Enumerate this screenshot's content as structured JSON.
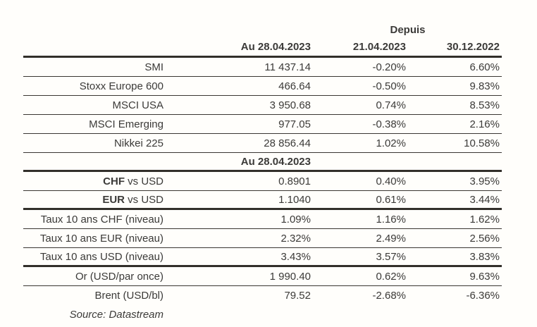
{
  "table": {
    "depuis_label": "Depuis",
    "columns": [
      "Au 28.04.2023",
      "21.04.2023",
      "30.12.2022"
    ],
    "section2_header": "Au 28.04.2023",
    "rows": [
      {
        "label": "SMI",
        "value": "11 437.14",
        "since_prev": "-0.20%",
        "since_ytd": "6.60%"
      },
      {
        "label": "Stoxx Europe 600",
        "value": "466.64",
        "since_prev": "-0.50%",
        "since_ytd": "9.83%"
      },
      {
        "label": "MSCI USA",
        "value": "3 950.68",
        "since_prev": "0.74%",
        "since_ytd": "8.53%"
      },
      {
        "label": "MSCI Emerging",
        "value": "977.05",
        "since_prev": "-0.38%",
        "since_ytd": "2.16%"
      },
      {
        "label": "Nikkei 225",
        "value": "28 856.44",
        "since_prev": "1.02%",
        "since_ytd": "10.58%"
      },
      {
        "label_bold": "CHF",
        "label_rest": " vs USD",
        "value": "0.8901",
        "since_prev": "0.40%",
        "since_ytd": "3.95%"
      },
      {
        "label_bold": "EUR",
        "label_rest": " vs USD",
        "value": "1.1040",
        "since_prev": "0.61%",
        "since_ytd": "3.44%"
      },
      {
        "label": "Taux 10 ans CHF (niveau)",
        "value": "1.09%",
        "since_prev": "1.16%",
        "since_ytd": "1.62%"
      },
      {
        "label": "Taux 10 ans EUR (niveau)",
        "value": "2.32%",
        "since_prev": "2.49%",
        "since_ytd": "2.56%"
      },
      {
        "label": "Taux 10 ans USD (niveau)",
        "value": "3.43%",
        "since_prev": "3.57%",
        "since_ytd": "3.83%"
      },
      {
        "label": "Or (USD/par once)",
        "value": "1 990.40",
        "since_prev": "0.62%",
        "since_ytd": "9.63%"
      },
      {
        "label": "Brent (USD/bl)",
        "value": "79.52",
        "since_prev": "-2.68%",
        "since_ytd": "-6.36%"
      }
    ],
    "source": "Source: Datastream",
    "colors": {
      "background": "#fffefb",
      "text": "#3b3a38",
      "rule_thin": "#3a3632",
      "rule_thick": "#322f2a"
    }
  }
}
